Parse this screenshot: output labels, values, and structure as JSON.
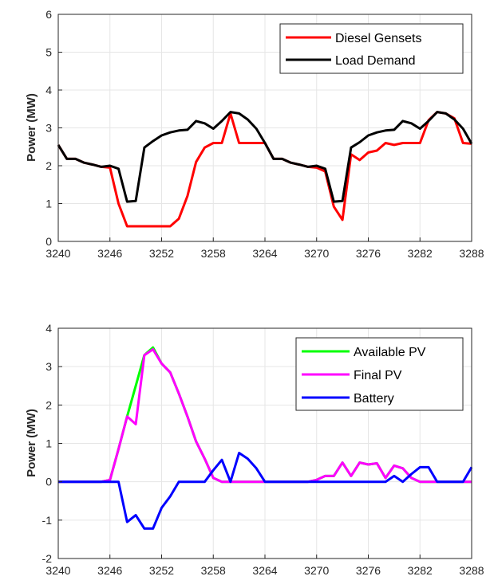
{
  "chart_data": [
    {
      "type": "line",
      "ylabel": "Power (MW)",
      "xlabel": "",
      "xlim": [
        3240,
        3288
      ],
      "ylim": [
        0,
        6
      ],
      "xticks": [
        3240,
        3246,
        3252,
        3258,
        3264,
        3270,
        3276,
        3282,
        3288
      ],
      "yticks": [
        0,
        1,
        2,
        3,
        4,
        5,
        6
      ],
      "grid": true,
      "legend_position": "top-right",
      "x": [
        3240,
        3241,
        3242,
        3243,
        3244,
        3245,
        3246,
        3247,
        3248,
        3249,
        3250,
        3251,
        3252,
        3253,
        3254,
        3255,
        3256,
        3257,
        3258,
        3259,
        3260,
        3261,
        3262,
        3263,
        3264,
        3265,
        3266,
        3267,
        3268,
        3269,
        3270,
        3271,
        3272,
        3273,
        3274,
        3275,
        3276,
        3277,
        3278,
        3279,
        3280,
        3281,
        3282,
        3283,
        3284,
        3285,
        3286,
        3287,
        3288
      ],
      "series": [
        {
          "name": "Diesel Gensets",
          "color": "#ff0000",
          "values": [
            2.55,
            2.18,
            2.18,
            2.08,
            2.03,
            1.97,
            1.95,
            1.0,
            0.4,
            0.4,
            0.4,
            0.4,
            0.4,
            0.4,
            0.6,
            1.2,
            2.1,
            2.48,
            2.6,
            2.6,
            3.38,
            2.6,
            2.6,
            2.6,
            2.6,
            2.18,
            2.18,
            2.08,
            2.03,
            1.97,
            1.95,
            1.85,
            0.92,
            0.57,
            2.3,
            2.15,
            2.35,
            2.4,
            2.6,
            2.55,
            2.6,
            2.6,
            2.6,
            3.2,
            3.42,
            3.38,
            3.25,
            2.6,
            2.58
          ]
        },
        {
          "name": "Load Demand",
          "color": "#000000",
          "values": [
            2.55,
            2.18,
            2.18,
            2.08,
            2.03,
            1.97,
            2.0,
            1.92,
            1.05,
            1.07,
            2.48,
            2.65,
            2.8,
            2.88,
            2.93,
            2.95,
            3.18,
            3.12,
            2.98,
            3.18,
            3.42,
            3.38,
            3.22,
            2.98,
            2.6,
            2.18,
            2.18,
            2.08,
            2.03,
            1.97,
            2.0,
            1.92,
            1.05,
            1.07,
            2.48,
            2.62,
            2.8,
            2.88,
            2.93,
            2.95,
            3.18,
            3.12,
            2.98,
            3.18,
            3.42,
            3.38,
            3.22,
            2.98,
            2.58
          ]
        }
      ]
    },
    {
      "type": "line",
      "ylabel": "Power (MW)",
      "xlabel": "",
      "xlim": [
        3240,
        3288
      ],
      "ylim": [
        -2,
        4
      ],
      "xticks": [
        3240,
        3246,
        3252,
        3258,
        3264,
        3270,
        3276,
        3282,
        3288
      ],
      "yticks": [
        -2,
        -1,
        0,
        1,
        2,
        3,
        4
      ],
      "grid": true,
      "legend_position": "top-right",
      "x": [
        3240,
        3241,
        3242,
        3243,
        3244,
        3245,
        3246,
        3247,
        3248,
        3249,
        3250,
        3251,
        3252,
        3253,
        3254,
        3255,
        3256,
        3257,
        3258,
        3259,
        3260,
        3261,
        3262,
        3263,
        3264,
        3265,
        3266,
        3267,
        3268,
        3269,
        3270,
        3271,
        3272,
        3273,
        3274,
        3275,
        3276,
        3277,
        3278,
        3279,
        3280,
        3281,
        3282,
        3283,
        3284,
        3285,
        3286,
        3287,
        3288
      ],
      "series": [
        {
          "name": "Available PV",
          "color": "#00ff00",
          "values": [
            0,
            0,
            0,
            0,
            0,
            0,
            0.05,
            0.85,
            1.7,
            2.5,
            3.3,
            3.5,
            3.08,
            2.85,
            2.3,
            1.7,
            1.05,
            0.6,
            0.1,
            0,
            0,
            0,
            0,
            0,
            0,
            0,
            0,
            0,
            0,
            0,
            0.05,
            0.15,
            0.15,
            0.5,
            0.15,
            0.5,
            0.45,
            0.48,
            0.1,
            0.42,
            0.35,
            0.1,
            0,
            0,
            0,
            0,
            0,
            0,
            0
          ]
        },
        {
          "name": "Final PV",
          "color": "#ff00ff",
          "values": [
            0,
            0,
            0,
            0,
            0,
            0,
            0.05,
            0.85,
            1.7,
            1.5,
            3.3,
            3.45,
            3.08,
            2.85,
            2.3,
            1.7,
            1.05,
            0.6,
            0.1,
            0,
            0,
            0,
            0,
            0,
            0,
            0,
            0,
            0,
            0,
            0,
            0.05,
            0.15,
            0.15,
            0.5,
            0.15,
            0.5,
            0.45,
            0.48,
            0.1,
            0.42,
            0.35,
            0.1,
            0,
            0,
            0,
            0,
            0,
            0,
            0
          ]
        },
        {
          "name": "Battery",
          "color": "#0000ff",
          "values": [
            0,
            0,
            0,
            0,
            0,
            0,
            0,
            0,
            -1.05,
            -0.87,
            -1.22,
            -1.22,
            -0.68,
            -0.38,
            0,
            0,
            0,
            0,
            0.3,
            0.57,
            0,
            0.75,
            0.6,
            0.35,
            0,
            0,
            0,
            0,
            0,
            0,
            0,
            0,
            0,
            0,
            0,
            0,
            0,
            0,
            0,
            0.15,
            0,
            0.2,
            0.38,
            0.38,
            0,
            0,
            0,
            0,
            0.38
          ]
        }
      ]
    }
  ]
}
